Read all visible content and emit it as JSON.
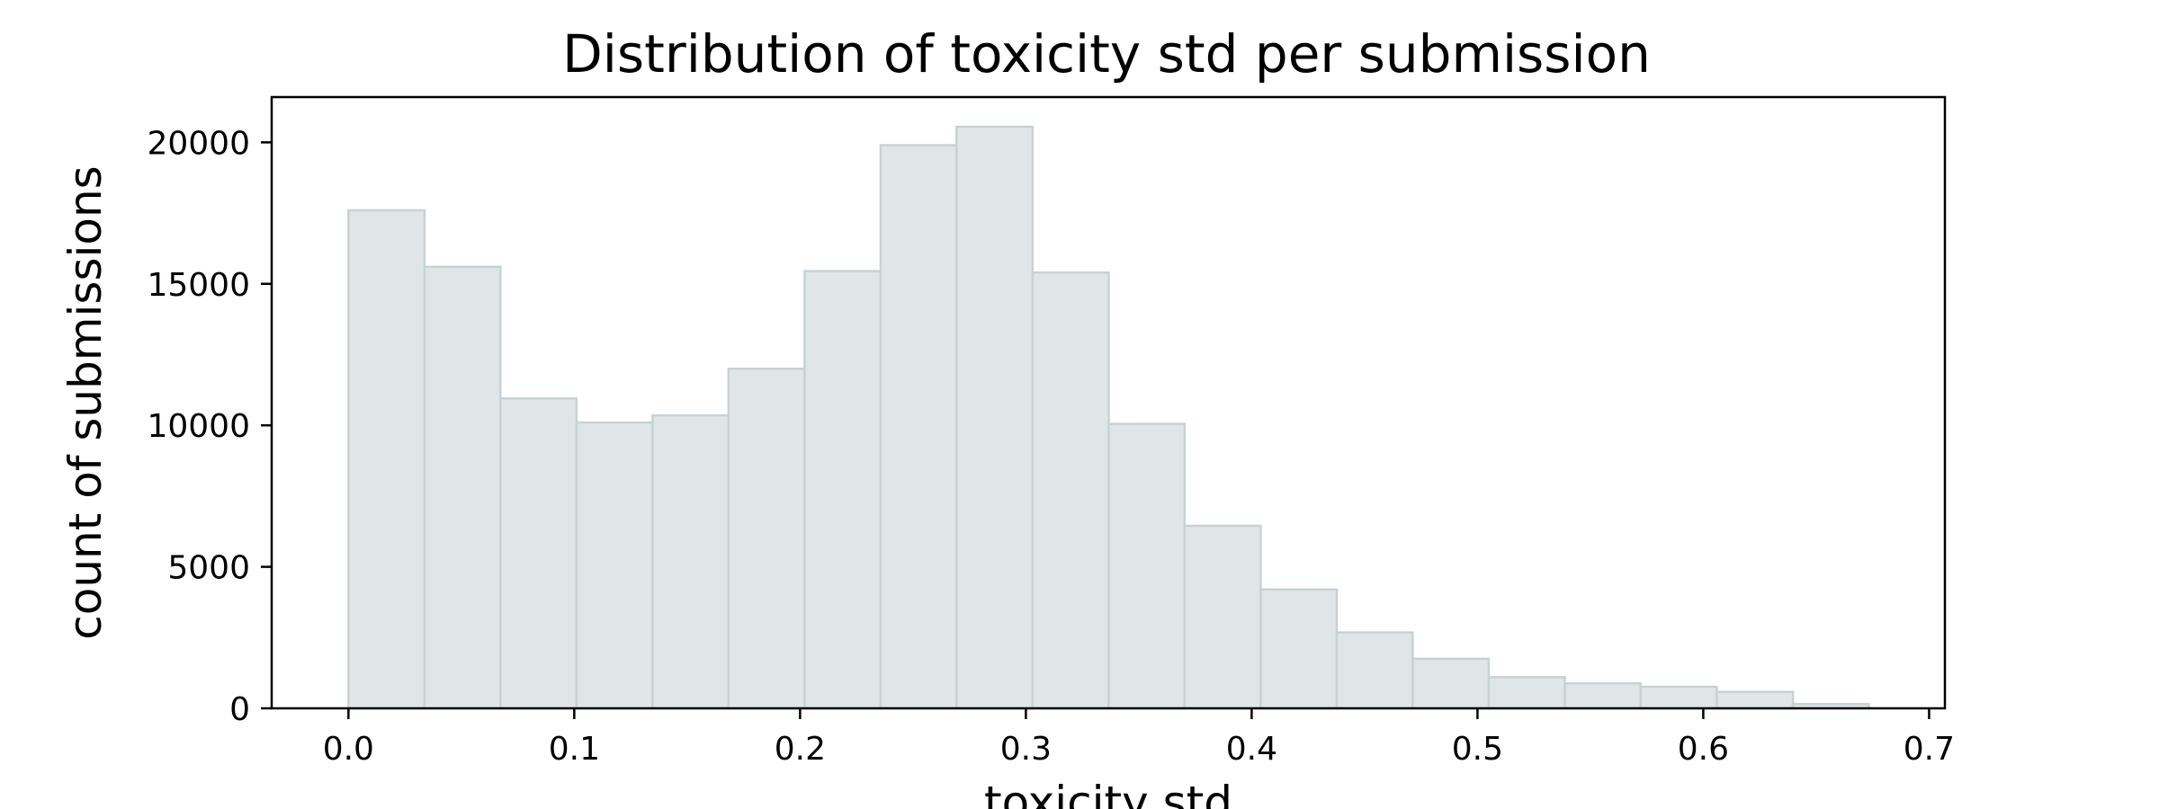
{
  "chart_data": {
    "type": "bar",
    "title": "Distribution of toxicity std per submission",
    "xlabel": "toxicity std",
    "ylabel": "count of submissions",
    "bin_edges": [
      0.0,
      0.0337,
      0.0673,
      0.101,
      0.1347,
      0.1683,
      0.202,
      0.2357,
      0.2693,
      0.303,
      0.3367,
      0.3703,
      0.404,
      0.4377,
      0.4713,
      0.505,
      0.5387,
      0.5723,
      0.606,
      0.6397,
      0.6733
    ],
    "values": [
      17600,
      15600,
      10950,
      10100,
      10350,
      12000,
      15450,
      19900,
      20550,
      15400,
      10050,
      6450,
      4200,
      2680,
      1750,
      1100,
      880,
      760,
      580,
      150
    ],
    "xlim": [
      -0.034,
      0.707
    ],
    "ylim": [
      0,
      21600
    ],
    "x_ticks": [
      0.0,
      0.1,
      0.2,
      0.3,
      0.4,
      0.5,
      0.6,
      0.7
    ],
    "x_tick_labels": [
      "0.0",
      "0.1",
      "0.2",
      "0.3",
      "0.4",
      "0.5",
      "0.6",
      "0.7"
    ],
    "y_ticks": [
      0,
      5000,
      10000,
      15000,
      20000
    ],
    "y_tick_labels": [
      "0",
      "5000",
      "10000",
      "15000",
      "20000"
    ],
    "grid": false,
    "legend": "none",
    "colors": {
      "bar_fill": "#e0e6e8",
      "bar_edge": "#c7d2d5",
      "axes": "#000000"
    }
  }
}
